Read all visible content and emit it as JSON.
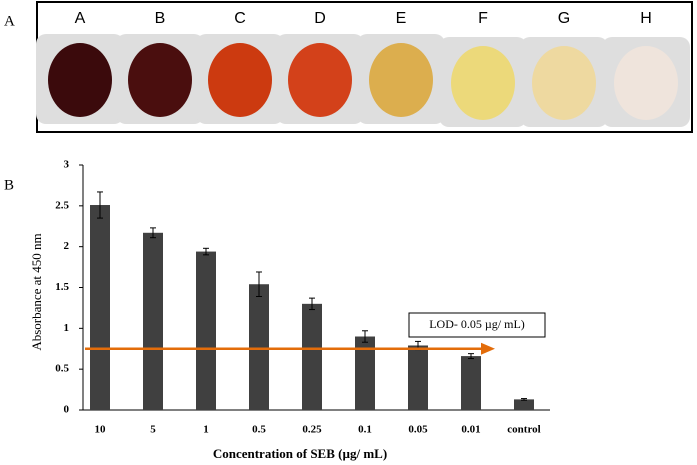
{
  "panel_a": {
    "label": "A",
    "wells": [
      {
        "label": "A",
        "color": "#3b0a0c"
      },
      {
        "label": "B",
        "color": "#4a0e0e"
      },
      {
        "label": "C",
        "color": "#cc3a10"
      },
      {
        "label": "D",
        "color": "#d3411a"
      },
      {
        "label": "E",
        "color": "#dcae4e"
      },
      {
        "label": "F",
        "color": "#ecd97a"
      },
      {
        "label": "G",
        "color": "#eed9a0"
      },
      {
        "label": "H",
        "color": "#efe4dc"
      }
    ]
  },
  "panel_b": {
    "label": "B"
  },
  "chart_data": {
    "type": "bar",
    "x_label": "Concentration of SEB (µg/ mL)",
    "y_label": "Absorbance at 450 nm",
    "categories": [
      "10",
      "5",
      "1",
      "0.5",
      "0.25",
      "0.1",
      "0.05",
      "0.01",
      "control"
    ],
    "values": [
      2.51,
      2.17,
      1.94,
      1.54,
      1.3,
      0.9,
      0.79,
      0.66,
      0.13
    ],
    "errors": [
      0.16,
      0.06,
      0.04,
      0.15,
      0.07,
      0.07,
      0.05,
      0.03,
      0.01
    ],
    "color": "#404040",
    "ylim": [
      0,
      3
    ],
    "yticks": [
      0,
      0.5,
      1,
      1.5,
      2,
      2.5,
      3
    ],
    "threshold": {
      "value": 0.75,
      "label": "LOD- 0.05 µg/ mL)",
      "color": "#e36c0a"
    }
  }
}
